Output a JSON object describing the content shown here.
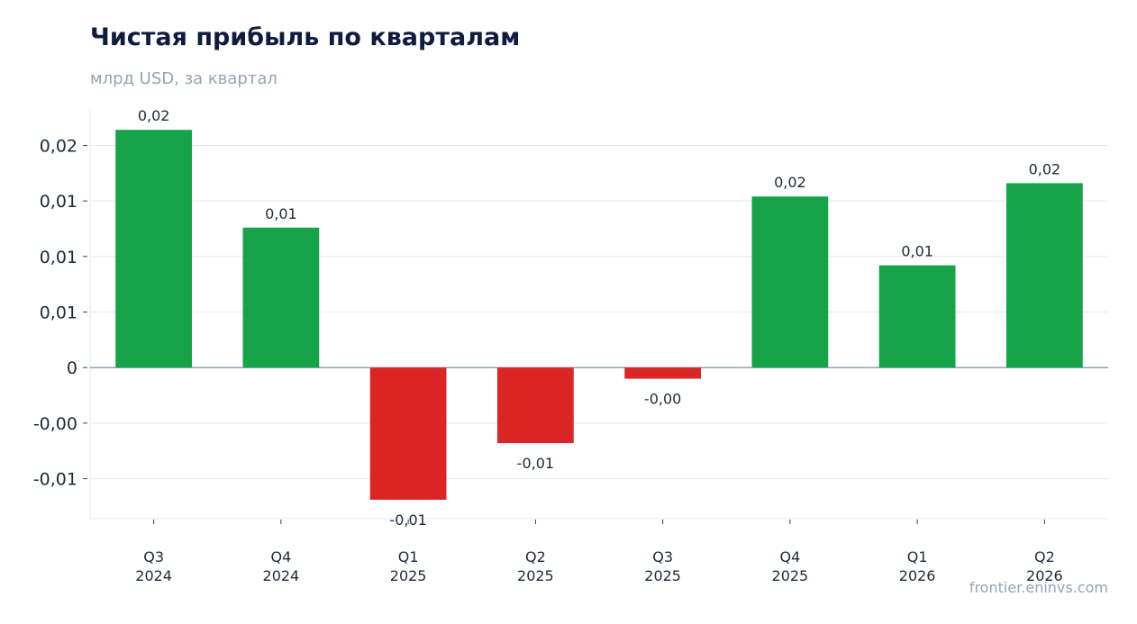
{
  "chart_data": {
    "type": "bar",
    "title": "Чистая прибыль по кварталам",
    "subtitle": "млрд USD, за квартал",
    "categories": [
      [
        "Q3",
        "2024"
      ],
      [
        "Q4",
        "2024"
      ],
      [
        "Q1",
        "2025"
      ],
      [
        "Q2",
        "2025"
      ],
      [
        "Q3",
        "2025"
      ],
      [
        "Q4",
        "2025"
      ],
      [
        "Q1",
        "2026"
      ],
      [
        "Q2",
        "2026"
      ]
    ],
    "values": [
      0.0214,
      0.0126,
      -0.0119,
      -0.0068,
      -0.001,
      0.0154,
      0.0092,
      0.0166
    ],
    "data_labels": [
      "0,02",
      "0,01",
      "-0,01",
      "-0,01",
      "-0,00",
      "0,02",
      "0,01",
      "0,02"
    ],
    "yticks": [
      {
        "value": 0.02,
        "label": "0,02"
      },
      {
        "value": 0.015,
        "label": "0,01"
      },
      {
        "value": 0.01,
        "label": "0,01"
      },
      {
        "value": 0.005,
        "label": "0,01"
      },
      {
        "value": 0,
        "label": "0"
      },
      {
        "value": -0.005,
        "label": "-0,00"
      },
      {
        "value": -0.01,
        "label": "-0,01"
      }
    ],
    "ylim": [
      -0.0136,
      0.0232
    ],
    "grid": true,
    "colors": {
      "positive": "#16a34a",
      "negative": "#dc2626",
      "grid": "#e2e8f0",
      "zero_line": "#94a3b8"
    }
  },
  "source": "frontier.eninvs.com"
}
